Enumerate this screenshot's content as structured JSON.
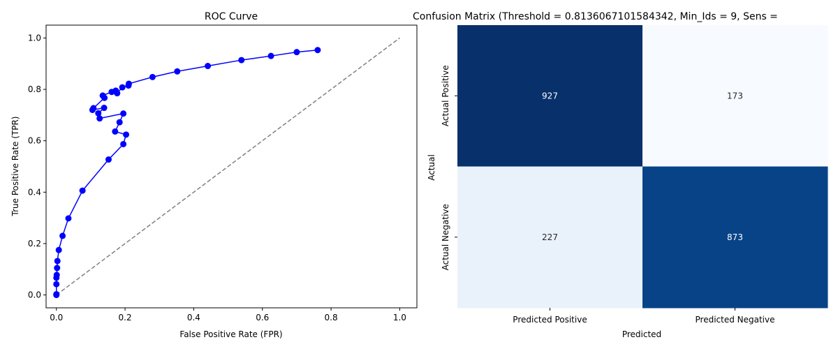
{
  "chart_data": [
    {
      "type": "line",
      "title": "ROC Curve",
      "xlabel": "False Positive Rate (FPR)",
      "ylabel": "True Positive Rate (TPR)",
      "xlim": [
        -0.03,
        1.05
      ],
      "ylim": [
        -0.05,
        1.05
      ],
      "xticks": [
        "0.0",
        "0.2",
        "0.4",
        "0.6",
        "0.8",
        "1.0"
      ],
      "yticks": [
        "0.0",
        "0.2",
        "0.4",
        "0.6",
        "0.8",
        "1.0"
      ],
      "grid": false,
      "series": [
        {
          "color": "#0000ff",
          "marker": "circle",
          "x": [
            0.0,
            0.0,
            0.0,
            0.0,
            0.001,
            0.002,
            0.003,
            0.007,
            0.018,
            0.035,
            0.076,
            0.152,
            0.195,
            0.203,
            0.171,
            0.184,
            0.195,
            0.126,
            0.122,
            0.139,
            0.105,
            0.108,
            0.14,
            0.135,
            0.161,
            0.173,
            0.177,
            0.192,
            0.21,
            0.211,
            0.28,
            0.352,
            0.441,
            0.539,
            0.625,
            0.7,
            0.761
          ],
          "y": [
            0.0,
            0.003,
            0.042,
            0.067,
            0.078,
            0.105,
            0.132,
            0.175,
            0.23,
            0.298,
            0.406,
            0.527,
            0.587,
            0.624,
            0.636,
            0.672,
            0.706,
            0.687,
            0.707,
            0.728,
            0.72,
            0.727,
            0.767,
            0.776,
            0.79,
            0.795,
            0.785,
            0.808,
            0.815,
            0.822,
            0.848,
            0.87,
            0.891,
            0.914,
            0.93,
            0.945,
            0.953
          ]
        },
        {
          "color": "#808080",
          "style": "dashed",
          "x": [
            0,
            1
          ],
          "y": [
            0,
            1
          ]
        }
      ]
    },
    {
      "type": "heatmap",
      "title": "Confusion Matrix (Threshold = 0.8136067101584342, Min_Ids = 9, Sens =",
      "xlabel": "Predicted",
      "ylabel": "Actual",
      "x_categories": [
        "Predicted Positive",
        "Predicted Negative"
      ],
      "y_categories": [
        "Actual Positive",
        "Actual Negative"
      ],
      "values": [
        [
          927,
          173
        ],
        [
          227,
          873
        ]
      ],
      "colormap": "Blues",
      "colors": {
        "low": "#f7fbff",
        "high": "#08306b"
      }
    }
  ]
}
